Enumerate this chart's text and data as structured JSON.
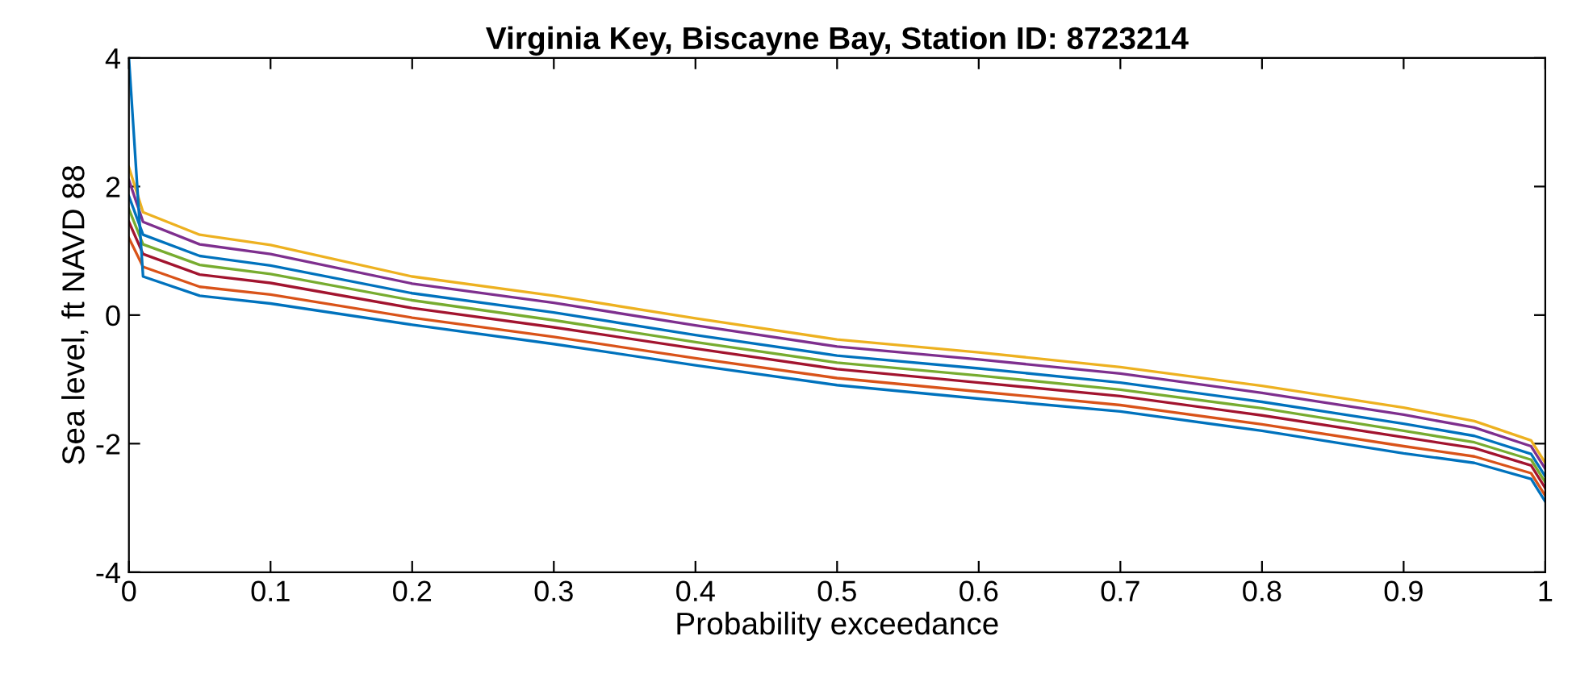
{
  "chart_data": {
    "type": "line",
    "title": "Virginia Key, Biscayne Bay, Station ID: 8723214",
    "xlabel": "Probability exceedance",
    "ylabel": "Sea level, ft NAVD 88",
    "x": [
      0,
      0.01,
      0.05,
      0.1,
      0.2,
      0.3,
      0.4,
      0.5,
      0.6,
      0.7,
      0.8,
      0.9,
      0.95,
      0.99,
      1
    ],
    "series": [
      {
        "color": "#edb120",
        "values": [
          2.3,
          1.6,
          1.25,
          1.09,
          0.6,
          0.3,
          -0.05,
          -0.38,
          -0.58,
          -0.81,
          -1.1,
          -1.44,
          -1.65,
          -1.95,
          -2.3
        ]
      },
      {
        "color": "#7e2f8e",
        "values": [
          2.1,
          1.45,
          1.1,
          0.95,
          0.49,
          0.19,
          -0.16,
          -0.49,
          -0.69,
          -0.91,
          -1.21,
          -1.55,
          -1.75,
          -2.04,
          -2.39
        ]
      },
      {
        "color": "#0072bd",
        "values": [
          1.85,
          1.25,
          0.92,
          0.77,
          0.34,
          0.04,
          -0.31,
          -0.63,
          -0.83,
          -1.05,
          -1.35,
          -1.69,
          -1.88,
          -2.16,
          -2.51
        ]
      },
      {
        "color": "#77ac30",
        "values": [
          1.65,
          1.1,
          0.78,
          0.64,
          0.23,
          -0.08,
          -0.42,
          -0.74,
          -0.94,
          -1.16,
          -1.45,
          -1.8,
          -1.98,
          -2.25,
          -2.6
        ]
      },
      {
        "color": "#a2142f",
        "values": [
          1.45,
          0.95,
          0.63,
          0.5,
          0.11,
          -0.19,
          -0.52,
          -0.84,
          -1.05,
          -1.26,
          -1.56,
          -1.9,
          -2.07,
          -2.34,
          -2.69
        ]
      },
      {
        "color": "#d95319",
        "values": [
          1.2,
          0.75,
          0.44,
          0.32,
          -0.04,
          -0.34,
          -0.67,
          -0.98,
          -1.19,
          -1.4,
          -1.7,
          -2.04,
          -2.2,
          -2.46,
          -2.81
        ]
      },
      {
        "color": "#0072bd",
        "values": [
          4,
          0.6,
          0.3,
          0.18,
          -0.15,
          -0.45,
          -0.78,
          -1.09,
          -1.3,
          -1.5,
          -1.8,
          -2.15,
          -2.3,
          -2.55,
          -2.9
        ]
      }
    ],
    "xlim": [
      0,
      1
    ],
    "xticks": [
      0,
      0.1,
      0.2,
      0.3,
      0.4,
      0.5,
      0.6,
      0.7,
      0.8,
      0.9,
      1
    ],
    "ylim": [
      -4,
      4
    ],
    "yticks": [
      -4,
      -2,
      0,
      2,
      4
    ],
    "grid": false,
    "legend": false,
    "marker": "none",
    "line_style": "solid"
  }
}
